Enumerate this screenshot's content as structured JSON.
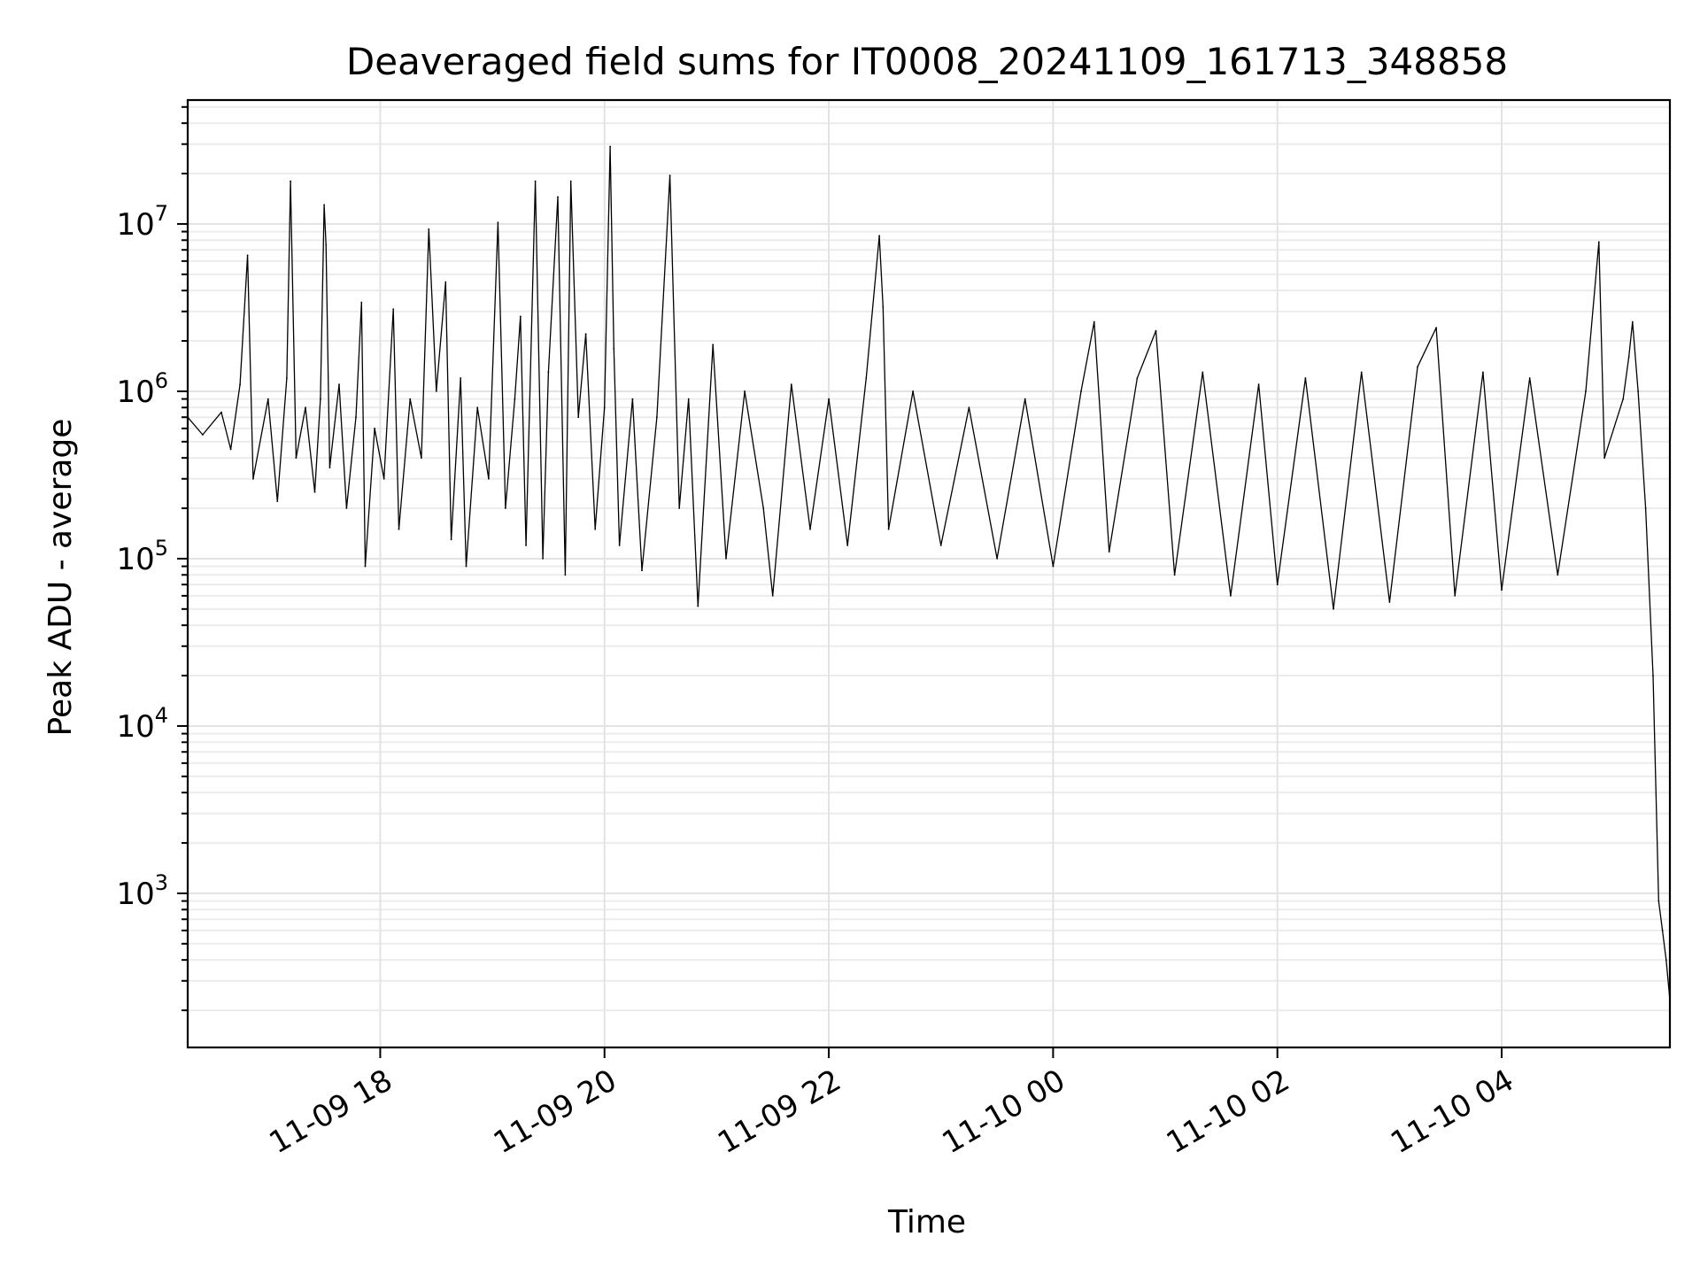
{
  "chart_data": {
    "type": "line",
    "title": "Deaveraged field sums for IT0008_20241109_161713_348858",
    "xlabel": "Time",
    "ylabel": "Peak ADU - average",
    "yscale": "log",
    "xlim": [
      "2024-11-09 16:17",
      "2024-11-10 05:30"
    ],
    "ylim": [
      120,
      55000000
    ],
    "grid": true,
    "x_ticks": [
      {
        "value": "2024-11-09 18:00",
        "label": "11-09 18"
      },
      {
        "value": "2024-11-09 20:00",
        "label": "11-09 20"
      },
      {
        "value": "2024-11-09 22:00",
        "label": "11-09 22"
      },
      {
        "value": "2024-11-10 00:00",
        "label": "11-10 00"
      },
      {
        "value": "2024-11-10 02:00",
        "label": "11-10 02"
      },
      {
        "value": "2024-11-10 04:00",
        "label": "11-10 04"
      }
    ],
    "y_ticks": [
      {
        "value": 1000,
        "base": "10",
        "exp": "3"
      },
      {
        "value": 10000,
        "base": "10",
        "exp": "4"
      },
      {
        "value": 100000,
        "base": "10",
        "exp": "5"
      },
      {
        "value": 1000000,
        "base": "10",
        "exp": "6"
      },
      {
        "value": 10000000,
        "base": "10",
        "exp": "7"
      }
    ],
    "series": [
      {
        "color": "#000000",
        "points": [
          [
            "2024-11-09 16:17",
            700000
          ],
          [
            "2024-11-09 16:25",
            550000
          ],
          [
            "2024-11-09 16:35",
            750000
          ],
          [
            "2024-11-09 16:40",
            450000
          ],
          [
            "2024-11-09 16:45",
            1100000
          ],
          [
            "2024-11-09 16:49",
            6500000
          ],
          [
            "2024-11-09 16:52",
            300000
          ],
          [
            "2024-11-09 17:00",
            900000
          ],
          [
            "2024-11-09 17:05",
            220000
          ],
          [
            "2024-11-09 17:10",
            1200000
          ],
          [
            "2024-11-09 17:12",
            18000000
          ],
          [
            "2024-11-09 17:15",
            400000
          ],
          [
            "2024-11-09 17:20",
            800000
          ],
          [
            "2024-11-09 17:25",
            250000
          ],
          [
            "2024-11-09 17:28",
            900000
          ],
          [
            "2024-11-09 17:30",
            13000000
          ],
          [
            "2024-11-09 17:31",
            7500000
          ],
          [
            "2024-11-09 17:33",
            350000
          ],
          [
            "2024-11-09 17:38",
            1100000
          ],
          [
            "2024-11-09 17:42",
            200000
          ],
          [
            "2024-11-09 17:47",
            700000
          ],
          [
            "2024-11-09 17:50",
            3400000
          ],
          [
            "2024-11-09 17:52",
            90000
          ],
          [
            "2024-11-09 17:57",
            600000
          ],
          [
            "2024-11-09 18:02",
            300000
          ],
          [
            "2024-11-09 18:07",
            3100000
          ],
          [
            "2024-11-09 18:10",
            150000
          ],
          [
            "2024-11-09 18:16",
            900000
          ],
          [
            "2024-11-09 18:22",
            400000
          ],
          [
            "2024-11-09 18:26",
            9300000
          ],
          [
            "2024-11-09 18:30",
            1000000
          ],
          [
            "2024-11-09 18:35",
            4500000
          ],
          [
            "2024-11-09 18:38",
            130000
          ],
          [
            "2024-11-09 18:43",
            1200000
          ],
          [
            "2024-11-09 18:46",
            90000
          ],
          [
            "2024-11-09 18:52",
            800000
          ],
          [
            "2024-11-09 18:58",
            300000
          ],
          [
            "2024-11-09 19:03",
            10200000
          ],
          [
            "2024-11-09 19:07",
            200000
          ],
          [
            "2024-11-09 19:12",
            900000
          ],
          [
            "2024-11-09 19:15",
            2800000
          ],
          [
            "2024-11-09 19:18",
            120000
          ],
          [
            "2024-11-09 19:23",
            18000000
          ],
          [
            "2024-11-09 19:27",
            100000
          ],
          [
            "2024-11-09 19:30",
            1300000
          ],
          [
            "2024-11-09 19:35",
            14500000
          ],
          [
            "2024-11-09 19:39",
            80000
          ],
          [
            "2024-11-09 19:42",
            18000000
          ],
          [
            "2024-11-09 19:46",
            700000
          ],
          [
            "2024-11-09 19:50",
            2200000
          ],
          [
            "2024-11-09 19:55",
            150000
          ],
          [
            "2024-11-09 20:00",
            800000
          ],
          [
            "2024-11-09 20:03",
            29000000
          ],
          [
            "2024-11-09 20:05",
            1800000
          ],
          [
            "2024-11-09 20:08",
            120000
          ],
          [
            "2024-11-09 20:15",
            900000
          ],
          [
            "2024-11-09 20:20",
            85000
          ],
          [
            "2024-11-09 20:28",
            700000
          ],
          [
            "2024-11-09 20:35",
            19500000
          ],
          [
            "2024-11-09 20:40",
            200000
          ],
          [
            "2024-11-09 20:45",
            900000
          ],
          [
            "2024-11-09 20:50",
            52000
          ],
          [
            "2024-11-09 20:58",
            1900000
          ],
          [
            "2024-11-09 21:05",
            100000
          ],
          [
            "2024-11-09 21:15",
            1000000
          ],
          [
            "2024-11-09 21:25",
            200000
          ],
          [
            "2024-11-09 21:30",
            60000
          ],
          [
            "2024-11-09 21:40",
            1100000
          ],
          [
            "2024-11-09 21:50",
            150000
          ],
          [
            "2024-11-09 22:00",
            900000
          ],
          [
            "2024-11-09 22:10",
            120000
          ],
          [
            "2024-11-09 22:20",
            1200000
          ],
          [
            "2024-11-09 22:27",
            8500000
          ],
          [
            "2024-11-09 22:29",
            3200000
          ],
          [
            "2024-11-09 22:32",
            150000
          ],
          [
            "2024-11-09 22:45",
            1000000
          ],
          [
            "2024-11-09 23:00",
            120000
          ],
          [
            "2024-11-09 23:15",
            800000
          ],
          [
            "2024-11-09 23:30",
            100000
          ],
          [
            "2024-11-09 23:45",
            900000
          ],
          [
            "2024-11-10 00:00",
            90000
          ],
          [
            "2024-11-10 00:15",
            1000000
          ],
          [
            "2024-11-10 00:22",
            2600000
          ],
          [
            "2024-11-10 00:30",
            110000
          ],
          [
            "2024-11-10 00:45",
            1200000
          ],
          [
            "2024-11-10 00:55",
            2300000
          ],
          [
            "2024-11-10 01:05",
            80000
          ],
          [
            "2024-11-10 01:20",
            1300000
          ],
          [
            "2024-11-10 01:35",
            60000
          ],
          [
            "2024-11-10 01:50",
            1100000
          ],
          [
            "2024-11-10 02:00",
            70000
          ],
          [
            "2024-11-10 02:15",
            1200000
          ],
          [
            "2024-11-10 02:30",
            50000
          ],
          [
            "2024-11-10 02:45",
            1300000
          ],
          [
            "2024-11-10 03:00",
            55000
          ],
          [
            "2024-11-10 03:15",
            1400000
          ],
          [
            "2024-11-10 03:25",
            2400000
          ],
          [
            "2024-11-10 03:35",
            60000
          ],
          [
            "2024-11-10 03:50",
            1300000
          ],
          [
            "2024-11-10 04:00",
            65000
          ],
          [
            "2024-11-10 04:15",
            1200000
          ],
          [
            "2024-11-10 04:30",
            80000
          ],
          [
            "2024-11-10 04:45",
            1000000
          ],
          [
            "2024-11-10 04:52",
            7800000
          ],
          [
            "2024-11-10 04:55",
            400000
          ],
          [
            "2024-11-10 05:05",
            900000
          ],
          [
            "2024-11-10 05:08",
            1600000
          ],
          [
            "2024-11-10 05:10",
            2600000
          ],
          [
            "2024-11-10 05:13",
            1000000
          ],
          [
            "2024-11-10 05:17",
            200000
          ],
          [
            "2024-11-10 05:21",
            20000
          ],
          [
            "2024-11-10 05:24",
            900
          ],
          [
            "2024-11-10 05:26",
            600
          ],
          [
            "2024-11-10 05:28",
            400
          ],
          [
            "2024-11-10 05:30",
            230
          ]
        ]
      }
    ]
  }
}
